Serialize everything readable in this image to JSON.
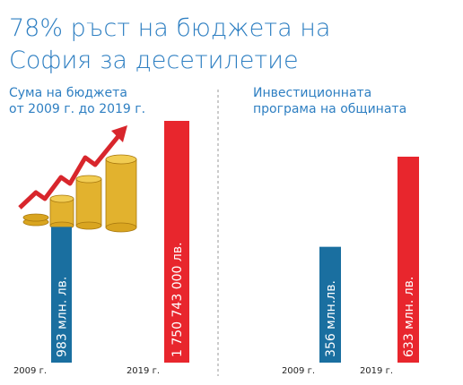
{
  "title": [
    "78% ръст на бюджета на",
    "София за десетилетие"
  ],
  "chart_data": [
    {
      "type": "bar",
      "title": [
        "Сума на бюджета",
        "от 2009 г. до 2019 г."
      ],
      "categories": [
        "2009 г.",
        "2019 г."
      ],
      "values": [
        983000000,
        1750743000
      ],
      "value_labels": [
        "983 млн. лв.",
        "1 750 743 000 лв."
      ],
      "colors": [
        "#1a6fa0",
        "#e8262d"
      ]
    },
    {
      "type": "bar",
      "title": [
        "Инвестиционната",
        "програма на общината"
      ],
      "categories": [
        "2009 г.",
        "2019 г."
      ],
      "values": [
        356,
        633
      ],
      "value_labels": [
        "356 млн.лв.",
        "633 млн. лв."
      ],
      "colors": [
        "#1a6fa0",
        "#e8262d"
      ]
    }
  ]
}
